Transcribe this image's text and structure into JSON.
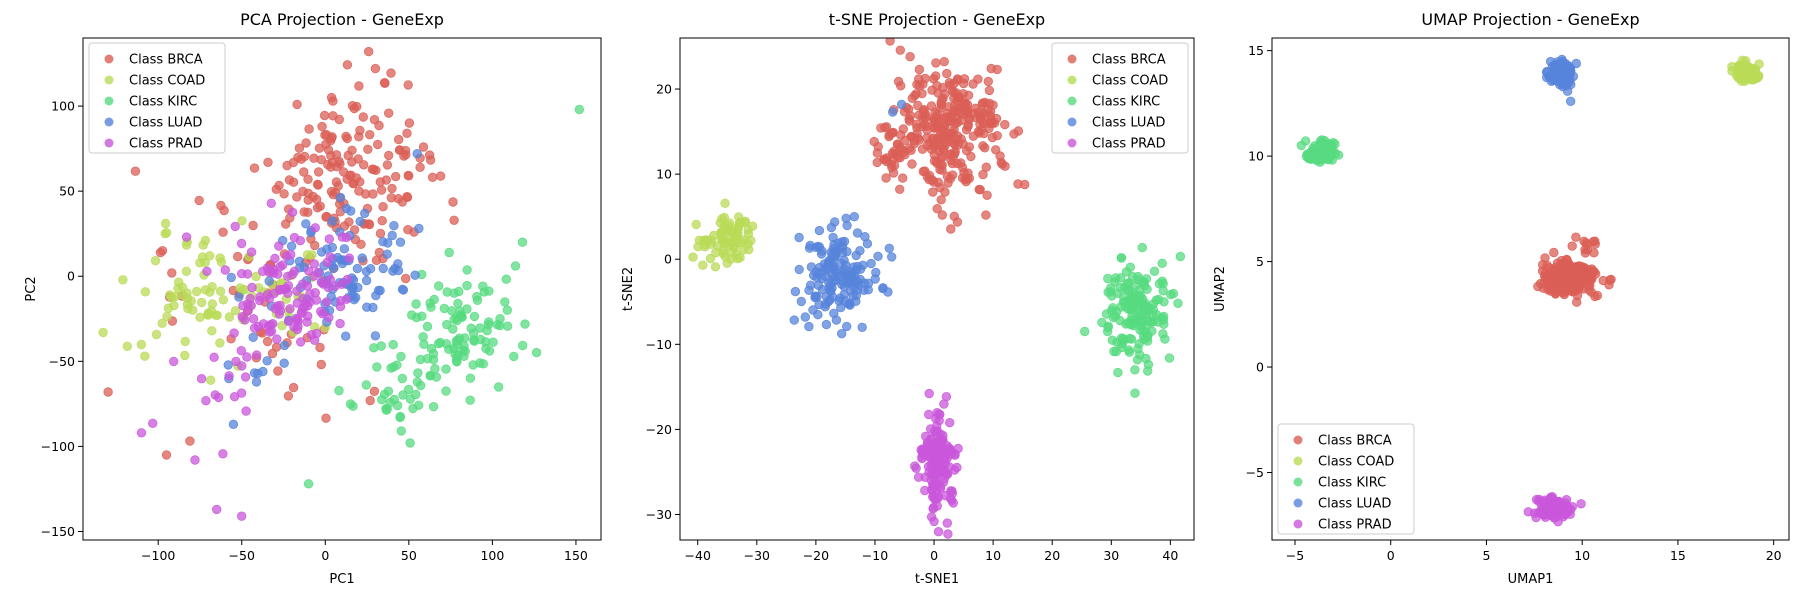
{
  "chart_data": [
    {
      "type": "scatter",
      "title": "PCA Projection - GeneExp",
      "xlabel": "PC1",
      "ylabel": "PC2",
      "xlim": [
        -145,
        165
      ],
      "ylim": [
        -155,
        140
      ],
      "xticks": [
        -100,
        -50,
        0,
        50,
        100,
        150
      ],
      "yticks": [
        -150,
        -100,
        -50,
        0,
        50,
        100
      ],
      "legend": "top-left",
      "grid": false,
      "series": [
        {
          "name": "Class BRCA",
          "color": "#db5f57",
          "clusters": [
            {
              "cx": 10,
              "cy": 55,
              "sx": 25,
              "sy": 22,
              "n": 150
            },
            {
              "cx": -40,
              "cy": -20,
              "sx": 35,
              "sy": 30,
              "n": 45
            },
            {
              "cx": 25,
              "cy": 95,
              "sx": 15,
              "sy": 15,
              "n": 20
            }
          ],
          "extras": [
            [
              -130,
              -68
            ],
            [
              -95,
              -105
            ],
            [
              26,
              132
            ],
            [
              30,
              122
            ]
          ]
        },
        {
          "name": "Class COAD",
          "color": "#b9db57",
          "clusters": [
            {
              "cx": -75,
              "cy": -12,
              "sx": 22,
              "sy": 18,
              "n": 70
            },
            {
              "cx": -30,
              "cy": -10,
              "sx": 15,
              "sy": 14,
              "n": 20
            }
          ],
          "extras": [
            [
              -133,
              -33
            ],
            [
              -108,
              -47
            ]
          ]
        },
        {
          "name": "Class KIRC",
          "color": "#57db80",
          "clusters": [
            {
              "cx": 85,
              "cy": -28,
              "sx": 15,
              "sy": 18,
              "n": 90
            },
            {
              "cx": 45,
              "cy": -62,
              "sx": 14,
              "sy": 15,
              "n": 45
            }
          ],
          "extras": [
            [
              152,
              98
            ],
            [
              118,
              20
            ],
            [
              -10,
              -122
            ]
          ]
        },
        {
          "name": "Class LUAD",
          "color": "#5784db",
          "clusters": [
            {
              "cx": 5,
              "cy": 0,
              "sx": 20,
              "sy": 18,
              "n": 90
            },
            {
              "cx": -40,
              "cy": -50,
              "sx": 10,
              "sy": 10,
              "n": 10
            }
          ],
          "extras": [
            [
              55,
              72
            ],
            [
              45,
              20
            ],
            [
              -55,
              -87
            ],
            [
              30,
              -35
            ]
          ]
        },
        {
          "name": "Class PRAD",
          "color": "#c957db",
          "clusters": [
            {
              "cx": -20,
              "cy": -10,
              "sx": 18,
              "sy": 18,
              "n": 120
            },
            {
              "cx": -60,
              "cy": -70,
              "sx": 20,
              "sy": 25,
              "n": 15
            }
          ],
          "extras": [
            [
              -83,
              23
            ],
            [
              -65,
              -137
            ],
            [
              -50,
              -141
            ],
            [
              -110,
              -92
            ],
            [
              -78,
              -108
            ]
          ]
        }
      ]
    },
    {
      "type": "scatter",
      "title": "t-SNE Projection - GeneExp",
      "xlabel": "t-SNE1",
      "ylabel": "t-SNE2",
      "xlim": [
        -43,
        44
      ],
      "ylim": [
        -33,
        26
      ],
      "xticks": [
        -40,
        -30,
        -20,
        -10,
        0,
        10,
        20,
        30,
        40
      ],
      "yticks": [
        -30,
        -20,
        -10,
        0,
        10,
        20
      ],
      "legend": "top-right",
      "grid": false,
      "series": [
        {
          "name": "Class BRCA",
          "color": "#db5f57",
          "clusters": [
            {
              "cx": 3,
              "cy": 15,
              "sx": 4.5,
              "sy": 4,
              "n": 280
            },
            {
              "cx": -7,
              "cy": 13,
              "sx": 2,
              "sy": 2,
              "n": 35
            }
          ],
          "extras": []
        },
        {
          "name": "Class COAD",
          "color": "#b9db57",
          "clusters": [
            {
              "cx": -35,
              "cy": 2.5,
              "sx": 2.2,
              "sy": 1.4,
              "n": 75
            }
          ],
          "extras": []
        },
        {
          "name": "Class KIRC",
          "color": "#57db80",
          "clusters": [
            {
              "cx": 34,
              "cy": -6,
              "sx": 2.8,
              "sy": 3,
              "n": 160
            }
          ],
          "extras": [
            [
              25.5,
              -8.5
            ],
            [
              34,
              -13
            ]
          ]
        },
        {
          "name": "Class LUAD",
          "color": "#5784db",
          "clusters": [
            {
              "cx": -16,
              "cy": -2,
              "sx": 3,
              "sy": 2.8,
              "n": 150
            }
          ],
          "extras": [
            [
              -5.5,
              18.2
            ],
            [
              -7,
              17.3
            ],
            [
              -13.5,
              5
            ]
          ]
        },
        {
          "name": "Class PRAD",
          "color": "#c957db",
          "clusters": [
            {
              "cx": 0.5,
              "cy": -24,
              "sx": 1.4,
              "sy": 3,
              "n": 150
            }
          ],
          "extras": []
        }
      ]
    },
    {
      "type": "scatter",
      "title": "UMAP Projection - GeneExp",
      "xlabel": "UMAP1",
      "ylabel": "UMAP2",
      "xlim": [
        -6.2,
        20.8
      ],
      "ylim": [
        -8.2,
        15.6
      ],
      "xticks": [
        -5,
        0,
        5,
        10,
        15,
        20
      ],
      "yticks": [
        -5,
        0,
        5,
        10,
        15
      ],
      "legend": "bottom-left",
      "grid": false,
      "series": [
        {
          "name": "Class BRCA",
          "color": "#db5f57",
          "clusters": [
            {
              "cx": 9.3,
              "cy": 4.2,
              "sx": 0.65,
              "sy": 0.35,
              "n": 320
            },
            {
              "cx": 10,
              "cy": 5.7,
              "sx": 0.3,
              "sy": 0.25,
              "n": 12
            }
          ],
          "extras": [
            [
              11.4,
              3.9
            ],
            [
              11.1,
              4.1
            ]
          ]
        },
        {
          "name": "Class COAD",
          "color": "#b9db57",
          "clusters": [
            {
              "cx": 18.5,
              "cy": 14.0,
              "sx": 0.3,
              "sy": 0.18,
              "n": 80
            }
          ],
          "extras": []
        },
        {
          "name": "Class KIRC",
          "color": "#57db80",
          "clusters": [
            {
              "cx": -3.6,
              "cy": 10.2,
              "sx": 0.35,
              "sy": 0.22,
              "n": 150
            }
          ],
          "extras": []
        },
        {
          "name": "Class LUAD",
          "color": "#5784db",
          "clusters": [
            {
              "cx": 9.0,
              "cy": 13.9,
              "sx": 0.28,
              "sy": 0.3,
              "n": 140
            }
          ],
          "extras": [
            [
              9.4,
              12.6
            ]
          ]
        },
        {
          "name": "Class PRAD",
          "color": "#c957db",
          "clusters": [
            {
              "cx": 8.5,
              "cy": -6.7,
              "sx": 0.45,
              "sy": 0.22,
              "n": 150
            }
          ],
          "extras": []
        }
      ]
    }
  ]
}
